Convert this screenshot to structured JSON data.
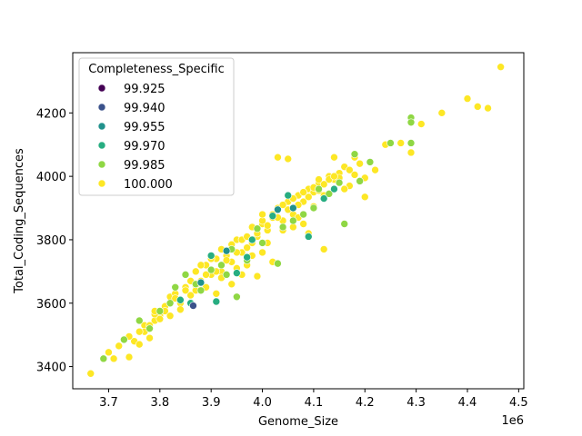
{
  "chart_data": {
    "type": "scatter",
    "title": "",
    "xlabel": "Genome_Size",
    "ylabel": "Total_Coding_Sequences",
    "x_offset_label": "1e6",
    "xlim": [
      3.63,
      4.51
    ],
    "ylim": [
      3330,
      4390
    ],
    "x_ticks": [
      3.7,
      3.8,
      3.9,
      4.0,
      4.1,
      4.2,
      4.3,
      4.4,
      4.5
    ],
    "x_tick_labels": [
      "3.7",
      "3.8",
      "3.9",
      "4.0",
      "4.1",
      "4.2",
      "4.3",
      "4.4",
      "4.5"
    ],
    "y_ticks": [
      3400,
      3600,
      3800,
      4000,
      4200
    ],
    "y_tick_labels": [
      "3400",
      "3600",
      "3800",
      "4000",
      "4200"
    ],
    "grid": false,
    "legend": {
      "title": "Completeness_Specific",
      "placement": "upper-left",
      "entries": [
        {
          "label": "99.925",
          "color": "#440154"
        },
        {
          "label": "99.940",
          "color": "#3b528b"
        },
        {
          "label": "99.955",
          "color": "#21918c"
        },
        {
          "label": "99.970",
          "color": "#27ad81"
        },
        {
          "label": "99.985",
          "color": "#8fd744"
        },
        {
          "label": "100.000",
          "color": "#fde725"
        }
      ]
    },
    "series": [
      {
        "name": "99.940",
        "color": "#3b528b",
        "x": [
          3.865
        ],
        "y": [
          3592
        ]
      },
      {
        "name": "99.955",
        "color": "#21918c",
        "x": [
          3.93,
          4.03,
          3.88,
          4.06
        ],
        "y": [
          3765,
          3895,
          3665,
          3900
        ]
      },
      {
        "name": "99.970",
        "color": "#27ad81",
        "x": [
          3.86,
          3.91,
          3.95,
          3.97,
          4.02,
          4.09,
          4.12,
          3.9,
          3.98,
          4.05,
          3.84,
          4.14
        ],
        "y": [
          3600,
          3605,
          3695,
          3745,
          3875,
          3810,
          3930,
          3750,
          3800,
          3940,
          3610,
          3960
        ]
      },
      {
        "name": "99.985",
        "color": "#8fd744",
        "x": [
          3.69,
          3.73,
          3.76,
          3.78,
          3.8,
          3.82,
          3.85,
          3.88,
          3.9,
          3.93,
          3.95,
          3.97,
          4.0,
          4.03,
          4.06,
          4.08,
          4.1,
          4.13,
          4.16,
          4.19,
          4.21,
          4.25,
          4.29,
          4.29,
          4.29,
          3.87,
          3.92,
          3.99,
          4.11,
          4.15,
          4.04,
          3.94,
          4.18,
          3.83
        ],
        "y": [
          3425,
          3485,
          3545,
          3520,
          3575,
          3600,
          3690,
          3640,
          3705,
          3690,
          3620,
          3735,
          3790,
          3725,
          3860,
          3880,
          3900,
          3945,
          3850,
          3985,
          4045,
          4105,
          4185,
          4170,
          4105,
          3660,
          3720,
          3835,
          3960,
          3980,
          3840,
          3770,
          4070,
          3650
        ]
      },
      {
        "name": "100.000",
        "color": "#fde725",
        "x": [
          3.665,
          3.7,
          3.71,
          3.74,
          3.75,
          3.76,
          3.77,
          3.78,
          3.79,
          3.8,
          3.81,
          3.82,
          3.83,
          3.84,
          3.85,
          3.86,
          3.87,
          3.88,
          3.89,
          3.9,
          3.91,
          3.92,
          3.93,
          3.94,
          3.95,
          3.96,
          3.97,
          3.98,
          3.99,
          4.0,
          4.01,
          4.02,
          4.03,
          4.04,
          4.05,
          4.06,
          4.07,
          4.08,
          4.09,
          4.1,
          4.11,
          4.12,
          4.13,
          4.14,
          4.15,
          4.16,
          4.17,
          4.18,
          4.19,
          4.2,
          4.22,
          4.24,
          4.27,
          4.29,
          4.31,
          4.35,
          4.4,
          4.42,
          4.44,
          4.465,
          3.72,
          3.77,
          3.79,
          3.81,
          3.83,
          3.85,
          3.87,
          3.89,
          3.91,
          3.93,
          3.95,
          3.97,
          3.99,
          4.01,
          4.03,
          4.05,
          4.07,
          4.09,
          4.11,
          4.13,
          4.15,
          4.17,
          4.19,
          3.86,
          3.88,
          3.9,
          3.92,
          3.94,
          3.96,
          3.98,
          4.0,
          4.02,
          4.04,
          4.06,
          4.08,
          4.1,
          4.12,
          4.14,
          3.84,
          3.82,
          3.8,
          3.78,
          4.16,
          4.18,
          4.2,
          3.92,
          3.95,
          3.98,
          4.01,
          4.04,
          4.07,
          4.1,
          4.05,
          4.03,
          3.99,
          3.96,
          4.02,
          4.0,
          4.12,
          4.08,
          3.89,
          3.87,
          3.91,
          3.94,
          4.14,
          4.11,
          4.06,
          4.09,
          3.76,
          3.74,
          3.79,
          4.0,
          3.97
        ],
        "y": [
          3378,
          3445,
          3425,
          3430,
          3480,
          3470,
          3530,
          3490,
          3545,
          3560,
          3590,
          3620,
          3630,
          3600,
          3650,
          3625,
          3700,
          3670,
          3720,
          3690,
          3740,
          3700,
          3750,
          3730,
          3800,
          3760,
          3720,
          3790,
          3810,
          3850,
          3830,
          3870,
          3900,
          3860,
          3920,
          3880,
          3940,
          3920,
          3960,
          3950,
          3980,
          3940,
          4000,
          3990,
          4010,
          4030,
          3970,
          4060,
          4040,
          3935,
          4020,
          4100,
          4105,
          4075,
          4165,
          4200,
          4245,
          4220,
          4215,
          4345,
          3465,
          3510,
          3565,
          3575,
          3615,
          3640,
          3655,
          3690,
          3700,
          3735,
          3760,
          3775,
          3820,
          3845,
          3870,
          3895,
          3910,
          3935,
          3955,
          3990,
          3995,
          4020,
          4040,
          3670,
          3720,
          3740,
          3770,
          3785,
          3800,
          3840,
          3860,
          3880,
          3910,
          3930,
          3950,
          3965,
          3975,
          4000,
          3580,
          3560,
          3550,
          3530,
          3960,
          4005,
          3995,
          3680,
          3710,
          3750,
          3790,
          3830,
          3870,
          3905,
          4055,
          4060,
          3685,
          3690,
          3730,
          3880,
          3770,
          3850,
          3650,
          3640,
          3630,
          3660,
          4060,
          3990,
          3840,
          3820,
          3510,
          3495,
          3575,
          3760,
          3810
        ]
      }
    ]
  }
}
